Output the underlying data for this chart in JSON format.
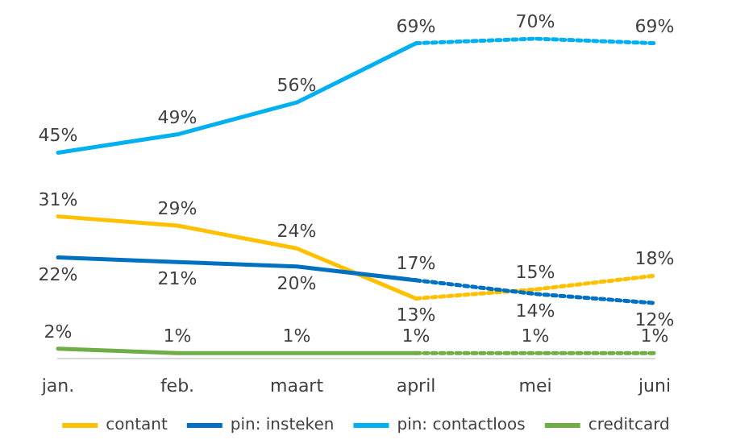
{
  "chart_data": {
    "type": "line",
    "categories": [
      "jan.",
      "feb.",
      "maart",
      "april",
      "mei",
      "juni"
    ],
    "series": [
      {
        "name": "contant",
        "color": "#ffc000",
        "values": [
          31,
          29,
          24,
          13,
          null,
          null
        ],
        "value_labels": [
          "31%",
          "29%",
          "24%",
          "13%",
          null,
          null
        ],
        "line_style": "solid"
      },
      {
        "name": "pin: insteken",
        "color": "#0070c0",
        "values": [
          22,
          21,
          20,
          17,
          null,
          null
        ],
        "value_labels": [
          "22%",
          "21%",
          "20%",
          "17%",
          null,
          null
        ],
        "line_style": "solid"
      },
      {
        "name": "pin: contactloos",
        "color": "#00b0f0",
        "values": [
          45,
          49,
          56,
          69,
          null,
          null
        ],
        "value_labels": [
          "45%",
          "49%",
          "56%",
          "69%",
          null,
          null
        ],
        "line_style": "solid"
      },
      {
        "name": "creditcard",
        "color": "#70ad47",
        "values": [
          2,
          1,
          1,
          1,
          null,
          null
        ],
        "value_labels": [
          "2%",
          "1%",
          "1%",
          "1%",
          null,
          null
        ],
        "line_style": "solid"
      },
      {
        "color": "#ffc000",
        "values": [
          null,
          null,
          null,
          13,
          15,
          18
        ],
        "value_labels": [
          null,
          null,
          null,
          null,
          "15%",
          "18%"
        ],
        "line_style": "dotted"
      },
      {
        "color": "#0070c0",
        "values": [
          null,
          null,
          null,
          17,
          14,
          12
        ],
        "value_labels": [
          null,
          null,
          null,
          null,
          "14%",
          "12%"
        ],
        "line_style": "dotted"
      },
      {
        "color": "#00b0f0",
        "values": [
          null,
          null,
          null,
          69,
          70,
          69
        ],
        "value_labels": [
          null,
          null,
          null,
          null,
          "70%",
          "69%"
        ],
        "line_style": "dotted"
      },
      {
        "color": "#70ad47",
        "values": [
          null,
          null,
          null,
          1,
          1,
          1
        ],
        "value_labels": [
          null,
          null,
          null,
          null,
          "1%",
          "1%"
        ],
        "line_style": "dotted"
      }
    ],
    "legend": "bottom",
    "grid": false,
    "marker": "none"
  }
}
